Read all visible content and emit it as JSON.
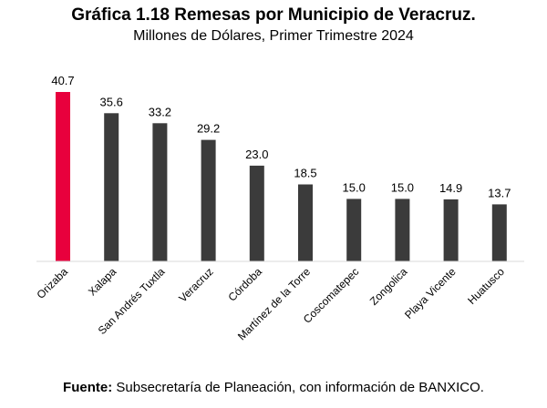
{
  "chart_data": {
    "type": "bar",
    "title": "Gráfica 1.18 Remesas por Municipio de Veracruz.",
    "subtitle": "Millones de Dólares, Primer Trimestre 2024",
    "categories": [
      "Orizaba",
      "Xalapa",
      "San Andrés Tuxtla",
      "Veracruz",
      "Córdoba",
      "Martínez de la Torre",
      "Coscomatepec",
      "Zongolica",
      "Playa Vicente",
      "Huatusco"
    ],
    "values": [
      40.7,
      35.6,
      33.2,
      29.2,
      23.0,
      18.5,
      15.0,
      15.0,
      14.9,
      13.7
    ],
    "value_labels": [
      "40.7",
      "35.6",
      "33.2",
      "29.2",
      "23.0",
      "18.5",
      "15.0",
      "15.0",
      "14.9",
      "13.7"
    ],
    "highlight_index": 0,
    "colors": {
      "highlight": "#e8003d",
      "bar": "#3b3b3b",
      "axis": "#d9d9d9"
    },
    "xlabel": "",
    "ylabel": "",
    "ylim": [
      0,
      40.7
    ],
    "grid": false,
    "legend": "none"
  },
  "footer": {
    "label": "Fuente:",
    "text": " Subsecretaría de Planeación, con información de BANXICO."
  }
}
